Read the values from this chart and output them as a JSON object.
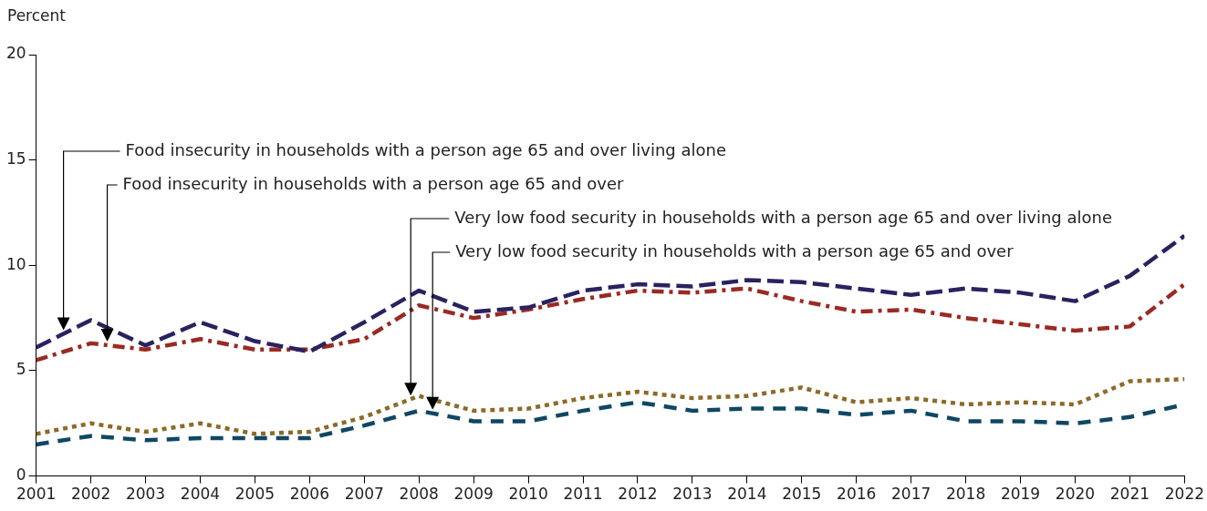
{
  "chart_data": {
    "type": "line",
    "ylabel": "Percent",
    "x": [
      2001,
      2002,
      2003,
      2004,
      2005,
      2006,
      2007,
      2008,
      2009,
      2010,
      2011,
      2012,
      2013,
      2014,
      2015,
      2016,
      2017,
      2018,
      2019,
      2020,
      2021,
      2022
    ],
    "xlim": [
      2001,
      2022
    ],
    "xticks": [
      2001,
      2002,
      2003,
      2004,
      2005,
      2006,
      2007,
      2008,
      2009,
      2010,
      2011,
      2012,
      2013,
      2014,
      2015,
      2016,
      2017,
      2018,
      2019,
      2020,
      2021,
      2022
    ],
    "ylim": [
      0,
      20
    ],
    "yticks": [
      0,
      5,
      10,
      15,
      20
    ],
    "grid": false,
    "legend": false,
    "marker": "none",
    "series": [
      {
        "name": "Food insecurity in households with a person age 65 and over living alone",
        "color": "#2a2260",
        "line_style": "dashed",
        "values": [
          6.1,
          7.4,
          6.2,
          7.3,
          6.4,
          5.9,
          7.3,
          8.8,
          7.8,
          8.0,
          8.8,
          9.1,
          9.0,
          9.3,
          9.2,
          8.9,
          8.6,
          8.9,
          8.7,
          8.3,
          9.5,
          11.4
        ]
      },
      {
        "name": "Food insecurity in households with a person age 65 and over",
        "color": "#9a2a22",
        "line_style": "dashdot",
        "values": [
          5.5,
          6.3,
          6.0,
          6.5,
          6.0,
          6.0,
          6.5,
          8.1,
          7.5,
          7.9,
          8.4,
          8.8,
          8.7,
          8.9,
          8.3,
          7.8,
          7.9,
          7.5,
          7.2,
          6.9,
          7.1,
          9.1
        ]
      },
      {
        "name": "Very low food security in households with a person age 65 and over living alone",
        "color": "#8c6a28",
        "line_style": "dotted",
        "values": [
          2.0,
          2.5,
          2.1,
          2.5,
          2.0,
          2.1,
          2.8,
          3.8,
          3.1,
          3.2,
          3.7,
          4.0,
          3.7,
          3.8,
          4.2,
          3.5,
          3.7,
          3.4,
          3.5,
          3.4,
          4.5,
          4.6
        ]
      },
      {
        "name": "Very low food security in households with a person age 65 and over",
        "color": "#0f4764",
        "line_style": "dashed",
        "values": [
          1.5,
          1.9,
          1.7,
          1.8,
          1.8,
          1.8,
          2.4,
          3.1,
          2.6,
          2.6,
          3.1,
          3.5,
          3.1,
          3.2,
          3.2,
          2.9,
          3.1,
          2.6,
          2.6,
          2.5,
          2.8,
          3.4
        ]
      }
    ]
  }
}
